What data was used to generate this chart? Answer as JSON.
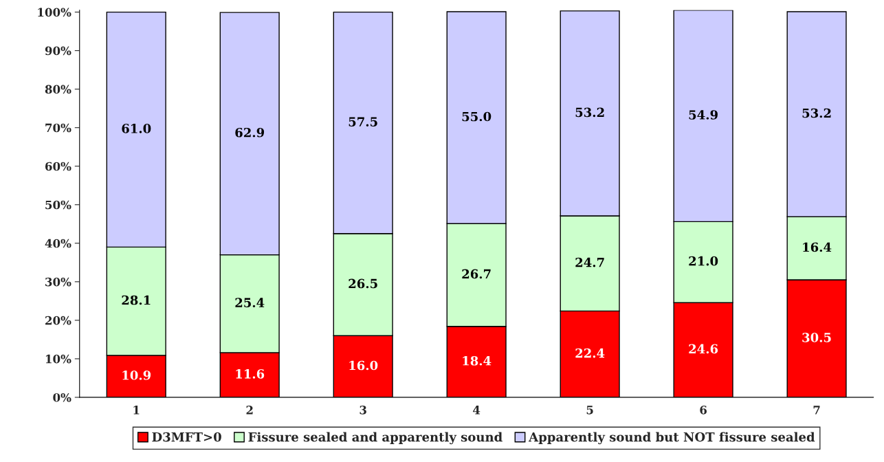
{
  "chart_data": {
    "type": "bar",
    "stacked": true,
    "categories": [
      "1",
      "2",
      "3",
      "4",
      "5",
      "6",
      "7"
    ],
    "series": [
      {
        "name": "D3MFT>0",
        "color": "#ff0000",
        "values": [
          10.9,
          11.6,
          16.0,
          18.4,
          22.4,
          24.6,
          30.5
        ],
        "value_labels": [
          "10.9",
          "11.6",
          "16.0",
          "18.4",
          "22.4",
          "24.6",
          "30.5"
        ]
      },
      {
        "name": "Fissure sealed and apparently sound",
        "color": "#ccffcc",
        "values": [
          28.1,
          25.4,
          26.5,
          26.7,
          24.7,
          21.0,
          16.4
        ],
        "value_labels": [
          "28.1",
          "25.4",
          "26.5",
          "26.7",
          "24.7",
          "21.0",
          "16.4"
        ]
      },
      {
        "name": "Apparently sound but NOT fissure sealed",
        "color": "#ccccff",
        "values": [
          61.0,
          62.9,
          57.5,
          55.0,
          53.2,
          54.9,
          53.2
        ],
        "value_labels": [
          "61.0",
          "62.9",
          "57.5",
          "55.0",
          "53.2",
          "54.9",
          "53.2"
        ]
      }
    ],
    "ylim": [
      0,
      100.5
    ],
    "yticks": [
      {
        "value": 0,
        "label": "0%"
      },
      {
        "value": 10,
        "label": "10%"
      },
      {
        "value": 20,
        "label": "20%"
      },
      {
        "value": 30,
        "label": "30%"
      },
      {
        "value": 40,
        "label": "40%"
      },
      {
        "value": 50,
        "label": "50%"
      },
      {
        "value": 60,
        "label": "60%"
      },
      {
        "value": 70,
        "label": "70%"
      },
      {
        "value": 80,
        "label": "80%"
      },
      {
        "value": 90,
        "label": "90%"
      },
      {
        "value": 100,
        "label": "100%"
      }
    ],
    "legend": "bottom",
    "grid": false
  }
}
